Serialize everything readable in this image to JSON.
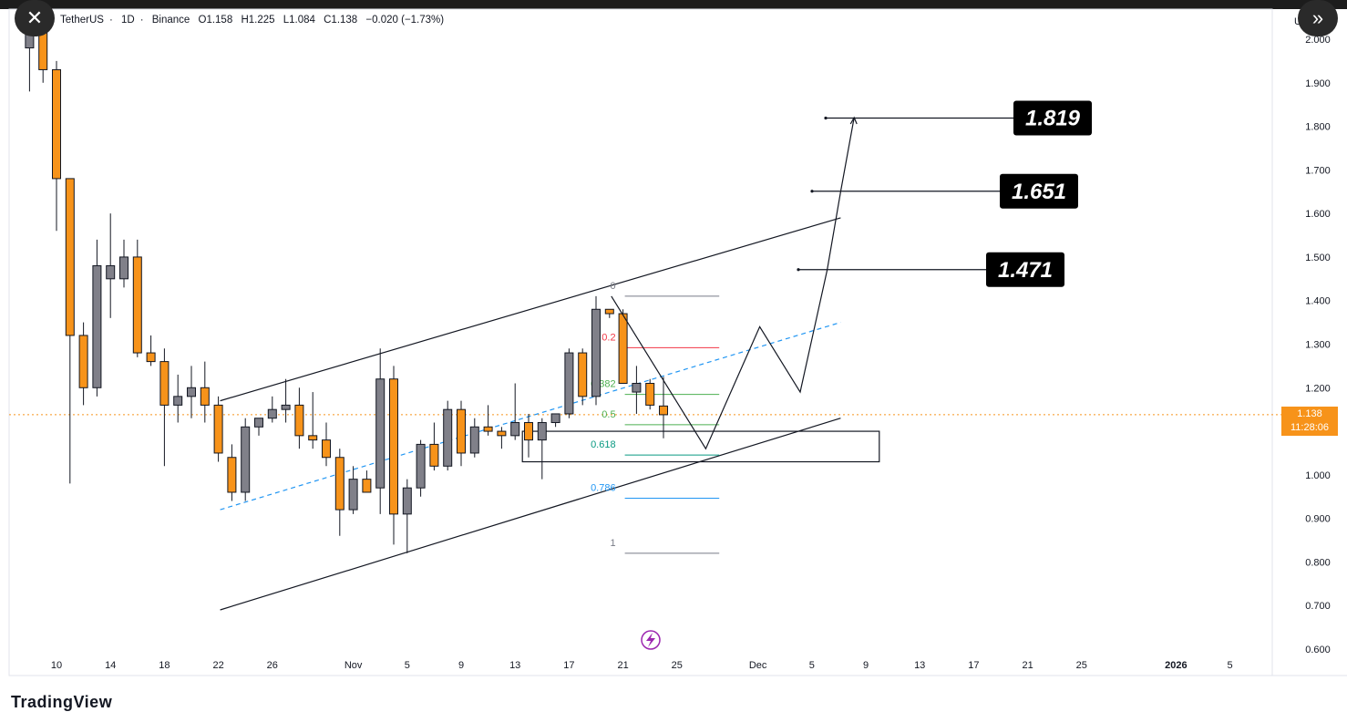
{
  "header": {
    "symbol": "TetherUS",
    "interval": "1D",
    "exchange": "Binance",
    "o": "O1.158",
    "h": "H1.225",
    "l": "L1.084",
    "c": "C1.138",
    "change": "−0.020 (−1.73%)",
    "separator": "·"
  },
  "buttons": {
    "close_icon": "✕",
    "expand_icon": "»"
  },
  "right_axis_letter": "U",
  "current_price": {
    "value": "1.138",
    "countdown": "11:28:06",
    "color": "#f7931a"
  },
  "brand": "TradingView",
  "y_axis_labels": [
    "2.000",
    "1.900",
    "1.800",
    "1.700",
    "1.600",
    "1.500",
    "1.400",
    "1.300",
    "1.200",
    "1.100",
    "1.000",
    "0.900",
    "0.800",
    "0.700",
    "0.600"
  ],
  "x_axis_labels": [
    "10",
    "14",
    "18",
    "22",
    "26",
    "Nov",
    "5",
    "9",
    "13",
    "17",
    "21",
    "25",
    "Dec",
    "5",
    "9",
    "13",
    "17",
    "21",
    "25",
    "2026",
    "5"
  ],
  "fib_levels": [
    {
      "label": "0",
      "color": "#787b86"
    },
    {
      "label": "0.2",
      "color": "#f23645"
    },
    {
      "label": "0.382",
      "color": "#4caf50"
    },
    {
      "label": "0.5",
      "color": "#4caf50"
    },
    {
      "label": "0.618",
      "color": "#089981"
    },
    {
      "label": "0.786",
      "color": "#2196f3"
    },
    {
      "label": "1",
      "color": "#787b86"
    }
  ],
  "targets": [
    "1.819",
    "1.651",
    "1.471"
  ],
  "colors": {
    "up": "#808089",
    "down": "#f7931a",
    "wick": "#131722",
    "target_bg": "#000000"
  },
  "chart_data": {
    "type": "candlestick",
    "ylim": [
      0.6,
      2.0
    ],
    "candles": [
      {
        "date": "Oct 8",
        "o": 1.98,
        "h": 2.05,
        "l": 1.88,
        "c": 2.04
      },
      {
        "date": "Oct 9",
        "o": 2.03,
        "h": 2.06,
        "l": 1.9,
        "c": 1.93
      },
      {
        "date": "Oct 10",
        "o": 1.93,
        "h": 1.95,
        "l": 1.56,
        "c": 1.68
      },
      {
        "date": "Oct 11",
        "o": 1.68,
        "h": 1.68,
        "l": 0.98,
        "c": 1.32
      },
      {
        "date": "Oct 12",
        "o": 1.32,
        "h": 1.35,
        "l": 1.16,
        "c": 1.2
      },
      {
        "date": "Oct 13",
        "o": 1.2,
        "h": 1.54,
        "l": 1.18,
        "c": 1.48
      },
      {
        "date": "Oct 14",
        "o": 1.45,
        "h": 1.6,
        "l": 1.36,
        "c": 1.48
      },
      {
        "date": "Oct 15",
        "o": 1.45,
        "h": 1.54,
        "l": 1.43,
        "c": 1.5
      },
      {
        "date": "Oct 16",
        "o": 1.5,
        "h": 1.54,
        "l": 1.27,
        "c": 1.28
      },
      {
        "date": "Oct 17",
        "o": 1.28,
        "h": 1.32,
        "l": 1.25,
        "c": 1.26
      },
      {
        "date": "Oct 18",
        "o": 1.26,
        "h": 1.29,
        "l": 1.02,
        "c": 1.16
      },
      {
        "date": "Oct 19",
        "o": 1.16,
        "h": 1.23,
        "l": 1.12,
        "c": 1.18
      },
      {
        "date": "Oct 20",
        "o": 1.18,
        "h": 1.25,
        "l": 1.13,
        "c": 1.2
      },
      {
        "date": "Oct 21",
        "o": 1.2,
        "h": 1.26,
        "l": 1.12,
        "c": 1.16
      },
      {
        "date": "Oct 22",
        "o": 1.16,
        "h": 1.18,
        "l": 1.03,
        "c": 1.05
      },
      {
        "date": "Oct 23",
        "o": 1.04,
        "h": 1.07,
        "l": 0.94,
        "c": 0.96
      },
      {
        "date": "Oct 24",
        "o": 0.96,
        "h": 1.13,
        "l": 0.94,
        "c": 1.11
      },
      {
        "date": "Oct 25",
        "o": 1.11,
        "h": 1.13,
        "l": 1.09,
        "c": 1.13
      },
      {
        "date": "Oct 26",
        "o": 1.13,
        "h": 1.18,
        "l": 1.12,
        "c": 1.15
      },
      {
        "date": "Oct 27",
        "o": 1.15,
        "h": 1.22,
        "l": 1.12,
        "c": 1.16
      },
      {
        "date": "Oct 28",
        "o": 1.16,
        "h": 1.2,
        "l": 1.06,
        "c": 1.09
      },
      {
        "date": "Oct 29",
        "o": 1.09,
        "h": 1.19,
        "l": 1.06,
        "c": 1.08
      },
      {
        "date": "Oct 30",
        "o": 1.08,
        "h": 1.12,
        "l": 1.02,
        "c": 1.04
      },
      {
        "date": "Oct 31",
        "o": 1.04,
        "h": 1.06,
        "l": 0.86,
        "c": 0.92
      },
      {
        "date": "Nov 1",
        "o": 0.92,
        "h": 1.02,
        "l": 0.91,
        "c": 0.99
      },
      {
        "date": "Nov 2",
        "o": 0.99,
        "h": 1.01,
        "l": 0.96,
        "c": 0.96
      },
      {
        "date": "Nov 3",
        "o": 0.97,
        "h": 1.29,
        "l": 0.91,
        "c": 1.22
      },
      {
        "date": "Nov 4",
        "o": 1.22,
        "h": 1.25,
        "l": 0.84,
        "c": 0.91
      },
      {
        "date": "Nov 5",
        "o": 0.91,
        "h": 0.99,
        "l": 0.82,
        "c": 0.97
      },
      {
        "date": "Nov 6",
        "o": 0.97,
        "h": 1.08,
        "l": 0.95,
        "c": 1.07
      },
      {
        "date": "Nov 7",
        "o": 1.07,
        "h": 1.12,
        "l": 1.01,
        "c": 1.02
      },
      {
        "date": "Nov 8",
        "o": 1.02,
        "h": 1.17,
        "l": 1.01,
        "c": 1.15
      },
      {
        "date": "Nov 9",
        "o": 1.15,
        "h": 1.17,
        "l": 1.02,
        "c": 1.05
      },
      {
        "date": "Nov 10",
        "o": 1.05,
        "h": 1.13,
        "l": 1.04,
        "c": 1.11
      },
      {
        "date": "Nov 11",
        "o": 1.11,
        "h": 1.16,
        "l": 1.09,
        "c": 1.1
      },
      {
        "date": "Nov 12",
        "o": 1.1,
        "h": 1.11,
        "l": 1.06,
        "c": 1.09
      },
      {
        "date": "Nov 13",
        "o": 1.09,
        "h": 1.21,
        "l": 1.08,
        "c": 1.12
      },
      {
        "date": "Nov 14",
        "o": 1.12,
        "h": 1.14,
        "l": 1.04,
        "c": 1.08
      },
      {
        "date": "Nov 15",
        "o": 1.08,
        "h": 1.13,
        "l": 0.99,
        "c": 1.12
      },
      {
        "date": "Nov 16",
        "o": 1.12,
        "h": 1.14,
        "l": 1.11,
        "c": 1.14
      },
      {
        "date": "Nov 17",
        "o": 1.14,
        "h": 1.29,
        "l": 1.13,
        "c": 1.28
      },
      {
        "date": "Nov 18",
        "o": 1.28,
        "h": 1.29,
        "l": 1.16,
        "c": 1.18
      },
      {
        "date": "Nov 19",
        "o": 1.18,
        "h": 1.41,
        "l": 1.16,
        "c": 1.38
      },
      {
        "date": "Nov 20",
        "o": 1.38,
        "h": 1.38,
        "l": 1.36,
        "c": 1.37
      },
      {
        "date": "Nov 21",
        "o": 1.37,
        "h": 1.38,
        "l": 1.21,
        "c": 1.21
      },
      {
        "date": "Nov 22",
        "o": 1.19,
        "h": 1.25,
        "l": 1.14,
        "c": 1.21
      },
      {
        "date": "Nov 23",
        "o": 1.21,
        "h": 1.22,
        "l": 1.15,
        "c": 1.16
      },
      {
        "date": "Nov 24",
        "o": 1.158,
        "h": 1.225,
        "l": 1.084,
        "c": 1.138
      }
    ],
    "channel": {
      "upper": [
        [
          "Oct 22",
          1.17
        ],
        [
          "Dec 7",
          1.59
        ]
      ],
      "lower": [
        [
          "Oct 22",
          0.69
        ],
        [
          "Dec 7",
          1.13
        ]
      ],
      "mid": [
        [
          "Oct 22",
          0.92
        ],
        [
          "Dec 7",
          1.35
        ]
      ]
    },
    "fib": {
      "from": 1.41,
      "to": 0.82,
      "levels": [
        0,
        0.2,
        0.382,
        0.5,
        0.618,
        0.786,
        1
      ]
    },
    "zone": {
      "top": 1.1,
      "bottom": 1.03,
      "from": "Nov 13",
      "to": "Dec 10"
    },
    "projection": [
      [
        "Nov 20",
        1.41
      ],
      [
        "Nov 27",
        1.06
      ],
      [
        "Dec 1",
        1.34
      ],
      [
        "Dec 4",
        1.19
      ],
      [
        "Dec 6",
        1.47
      ],
      [
        "Dec 7",
        1.65
      ],
      [
        "Dec 8",
        1.82
      ]
    ],
    "target_levels": [
      1.819,
      1.651,
      1.471
    ]
  }
}
